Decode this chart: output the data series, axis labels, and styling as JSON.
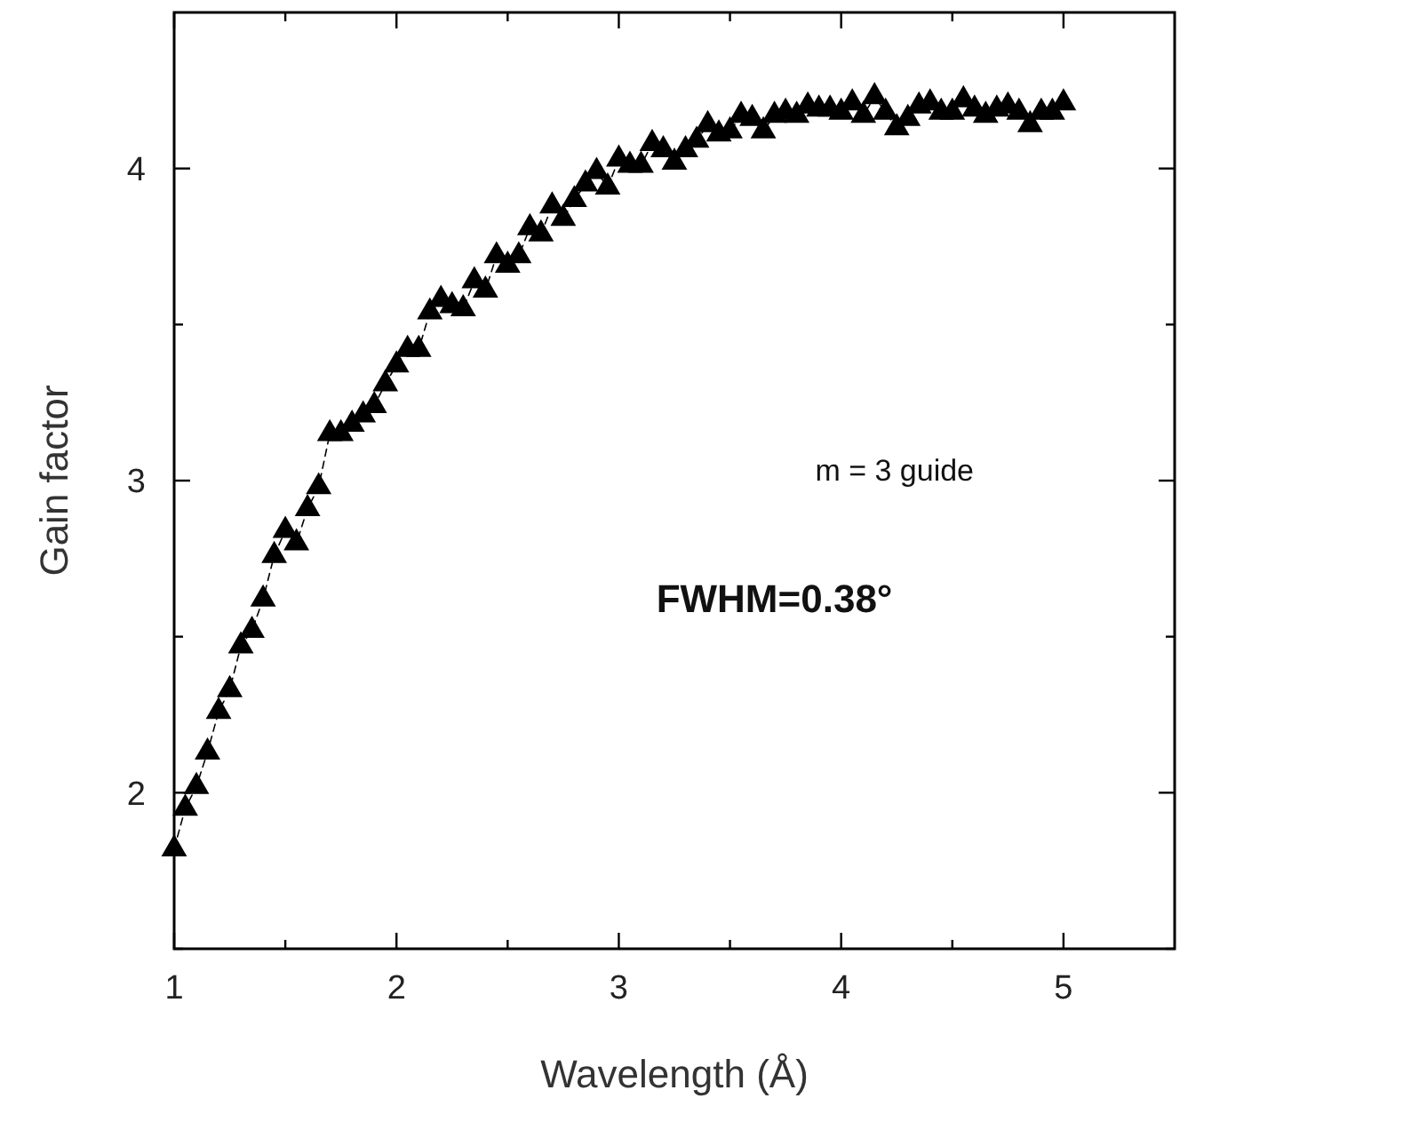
{
  "chart_data": {
    "type": "line",
    "xlabel": "Wavelength (Å)",
    "ylabel": "Gain factor",
    "annotations": [
      "m = 3 guide",
      "FWHM=0.38°"
    ],
    "x": [
      1.0,
      1.05,
      1.1,
      1.15,
      1.2,
      1.25,
      1.3,
      1.35,
      1.4,
      1.45,
      1.5,
      1.55,
      1.6,
      1.65,
      1.7,
      1.75,
      1.8,
      1.85,
      1.9,
      1.95,
      2.0,
      2.05,
      2.1,
      2.15,
      2.2,
      2.25,
      2.3,
      2.35,
      2.4,
      2.45,
      2.5,
      2.55,
      2.6,
      2.65,
      2.7,
      2.75,
      2.8,
      2.85,
      2.9,
      2.95,
      3.0,
      3.05,
      3.1,
      3.15,
      3.2,
      3.25,
      3.3,
      3.35,
      3.4,
      3.45,
      3.5,
      3.55,
      3.6,
      3.65,
      3.7,
      3.75,
      3.8,
      3.85,
      3.9,
      3.95,
      4.0,
      4.05,
      4.1,
      4.15,
      4.2,
      4.25,
      4.3,
      4.35,
      4.4,
      4.45,
      4.5,
      4.55,
      4.6,
      4.65,
      4.7,
      4.75,
      4.8,
      4.85,
      4.9,
      4.95,
      5.0
    ],
    "series": [
      {
        "color": "#000000",
        "values": [
          1.82,
          1.95,
          2.02,
          2.13,
          2.26,
          2.33,
          2.47,
          2.52,
          2.62,
          2.76,
          2.84,
          2.8,
          2.91,
          2.98,
          3.15,
          3.15,
          3.18,
          3.21,
          3.24,
          3.31,
          3.37,
          3.42,
          3.42,
          3.54,
          3.58,
          3.56,
          3.55,
          3.64,
          3.61,
          3.72,
          3.69,
          3.72,
          3.81,
          3.79,
          3.88,
          3.84,
          3.9,
          3.95,
          3.99,
          3.94,
          4.03,
          4.01,
          4.01,
          4.08,
          4.06,
          4.02,
          4.06,
          4.09,
          4.14,
          4.11,
          4.12,
          4.17,
          4.16,
          4.12,
          4.17,
          4.18,
          4.17,
          4.2,
          4.19,
          4.19,
          4.18,
          4.21,
          4.17,
          4.23,
          4.18,
          4.13,
          4.16,
          4.2,
          4.21,
          4.18,
          4.18,
          4.22,
          4.19,
          4.17,
          4.19,
          4.2,
          4.18,
          4.14,
          4.18,
          4.18,
          4.21
        ]
      }
    ],
    "xlim": [
      1,
      5.5
    ],
    "ylim": [
      1.5,
      4.5
    ],
    "xticks": [
      1,
      {
        "value": 1.5,
        "label": null
      },
      2,
      {
        "value": 2.5,
        "label": null
      },
      3,
      {
        "value": 3.5,
        "label": null
      },
      4,
      {
        "value": 4.5,
        "label": null
      },
      5
    ],
    "yticks": [
      {
        "value": 1.5,
        "label": null
      },
      2,
      {
        "value": 2.5,
        "label": null
      },
      3,
      {
        "value": 3.5,
        "label": null
      },
      4
    ],
    "grid": false,
    "marker": "triangle",
    "line_style": "dashed"
  }
}
